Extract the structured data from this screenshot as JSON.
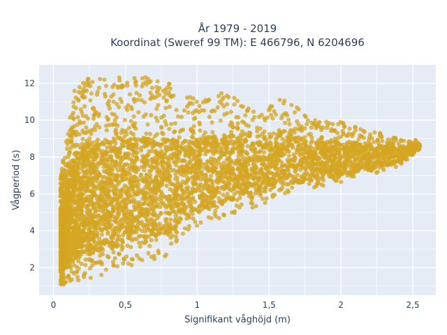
{
  "chart_data": {
    "type": "scatter",
    "title_lines": [
      "År 1979 - 2019",
      "Koordinat (Sweref 99 TM): E 466796, N 6204696"
    ],
    "xlabel": "Signifikant våghöjd (m)",
    "ylabel": "Vågperiod (s)",
    "xlim": [
      -0.1,
      2.66
    ],
    "ylim": [
      0.5,
      13.0
    ],
    "xticks": [
      0,
      0.5,
      1,
      1.5,
      2,
      2.5
    ],
    "xtick_labels": [
      "0",
      "0,5",
      "1",
      "1,5",
      "2",
      "2,5"
    ],
    "yticks": [
      2,
      4,
      6,
      8,
      10,
      12
    ],
    "ytick_labels": [
      "2",
      "4",
      "6",
      "8",
      "10",
      "12"
    ],
    "grid": true,
    "legend": "none",
    "colors": {
      "marker": "#d4a521",
      "plot_bg": "#e5ecf6",
      "grid": "#ffffff",
      "text": "#2a3f5f"
    },
    "marker_opacity": 0.75,
    "distribution": {
      "envelope_hs_vs_tp": [
        [
          0.05,
          1.05,
          7.0
        ],
        [
          0.1,
          1.1,
          9.5
        ],
        [
          0.15,
          1.2,
          11.8
        ],
        [
          0.2,
          1.3,
          12.3
        ],
        [
          0.3,
          1.5,
          12.3
        ],
        [
          0.4,
          1.7,
          12.4
        ],
        [
          0.5,
          2.0,
          12.5
        ],
        [
          0.6,
          2.2,
          12.4
        ],
        [
          0.7,
          2.4,
          12.3
        ],
        [
          0.8,
          2.6,
          12.1
        ],
        [
          0.9,
          3.5,
          11.5
        ],
        [
          1.0,
          4.2,
          11.3
        ],
        [
          1.2,
          4.8,
          11.5
        ],
        [
          1.4,
          5.3,
          10.5
        ],
        [
          1.6,
          5.8,
          11.3
        ],
        [
          1.8,
          6.3,
          10.0
        ],
        [
          2.0,
          6.6,
          10.0
        ],
        [
          2.2,
          7.0,
          9.5
        ],
        [
          2.4,
          7.5,
          9.0
        ],
        [
          2.55,
          8.4,
          8.9
        ]
      ],
      "dense_core": [
        [
          0.12,
          1.3
        ],
        [
          0.3,
          2.2
        ],
        [
          0.7,
          4.0
        ],
        [
          1.2,
          5.5
        ],
        [
          1.8,
          6.6
        ],
        [
          2.3,
          7.6
        ],
        [
          0.5,
          9.0
        ],
        [
          0.15,
          9.0
        ]
      ]
    }
  }
}
